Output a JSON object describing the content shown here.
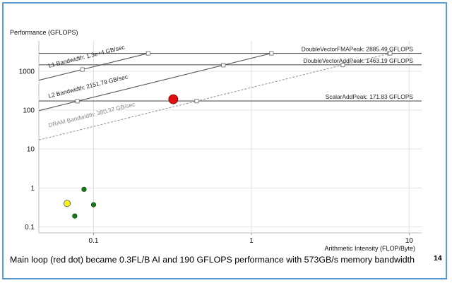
{
  "caption": "Main loop (red dot) became 0.3FL/B AI and 190 GFLOPS performance with 573GB/s memory bandwidth",
  "page_number": "14",
  "colors": {
    "frame": "#5b9bd5",
    "roof_line": "#555555",
    "dram_line": "#999999",
    "grid": "#e3e3e3",
    "red_dot": "#e01010",
    "yellow_dot": "#f2f21a",
    "green_dot": "#1a7a1a"
  },
  "chart_data": {
    "type": "scatter",
    "subtype": "roofline",
    "ylabel": "Performance (GFLOPS)",
    "xlabel": "Arithmetic Intensity (FLOP/Byte)",
    "xscale": "log",
    "yscale": "log",
    "xlim": [
      0.045,
      12
    ],
    "ylim": [
      0.07,
      6000
    ],
    "grid": true,
    "x_ticks": [
      {
        "value": 0.1,
        "label": "0.1"
      },
      {
        "value": 1,
        "label": "1"
      },
      {
        "value": 10,
        "label": "10"
      }
    ],
    "y_ticks": [
      {
        "value": 0.1,
        "label": "0.1"
      },
      {
        "value": 1,
        "label": "1"
      },
      {
        "value": 10,
        "label": "10"
      },
      {
        "value": 100,
        "label": "100"
      },
      {
        "value": 1000,
        "label": "1000"
      }
    ],
    "bandwidth_roofs": [
      {
        "label": "L1 Bandwidth: 1.3e+4 GB/sec",
        "gbps": 13000,
        "style": "solid",
        "marker_x": [
          0.085
        ]
      },
      {
        "label": "L2 Bandwidth: 2151.79 GB/sec",
        "gbps": 2151.79,
        "style": "solid",
        "marker_x": [
          0.079,
          0.665
        ]
      },
      {
        "label": "DRAM Bandwidth: 380.37 GB/sec",
        "gbps": 380.37,
        "style": "dashed",
        "marker_x": [
          0.45,
          3.8
        ]
      }
    ],
    "compute_roofs": [
      {
        "label": "DoubleVectorFMAPeak: 2885.49 GFLOPS",
        "gflops": 2885.49,
        "marker_x": [
          7.5
        ]
      },
      {
        "label": "DoubleVectorAddPeak: 1463.19 GFLOPS",
        "gflops": 1463.19,
        "marker_x": []
      },
      {
        "label": "ScalarAddPeak: 171.83 GFLOPS",
        "gflops": 171.83,
        "marker_x": []
      }
    ],
    "points": [
      {
        "ai": 0.32,
        "gflops": 190,
        "color": "red",
        "size": "large"
      },
      {
        "ai": 0.068,
        "gflops": 0.4,
        "color": "yellow",
        "size": "medium"
      },
      {
        "ai": 0.087,
        "gflops": 0.92,
        "color": "green",
        "size": "small"
      },
      {
        "ai": 0.1,
        "gflops": 0.37,
        "color": "green",
        "size": "small"
      },
      {
        "ai": 0.076,
        "gflops": 0.19,
        "color": "green",
        "size": "small"
      }
    ]
  }
}
